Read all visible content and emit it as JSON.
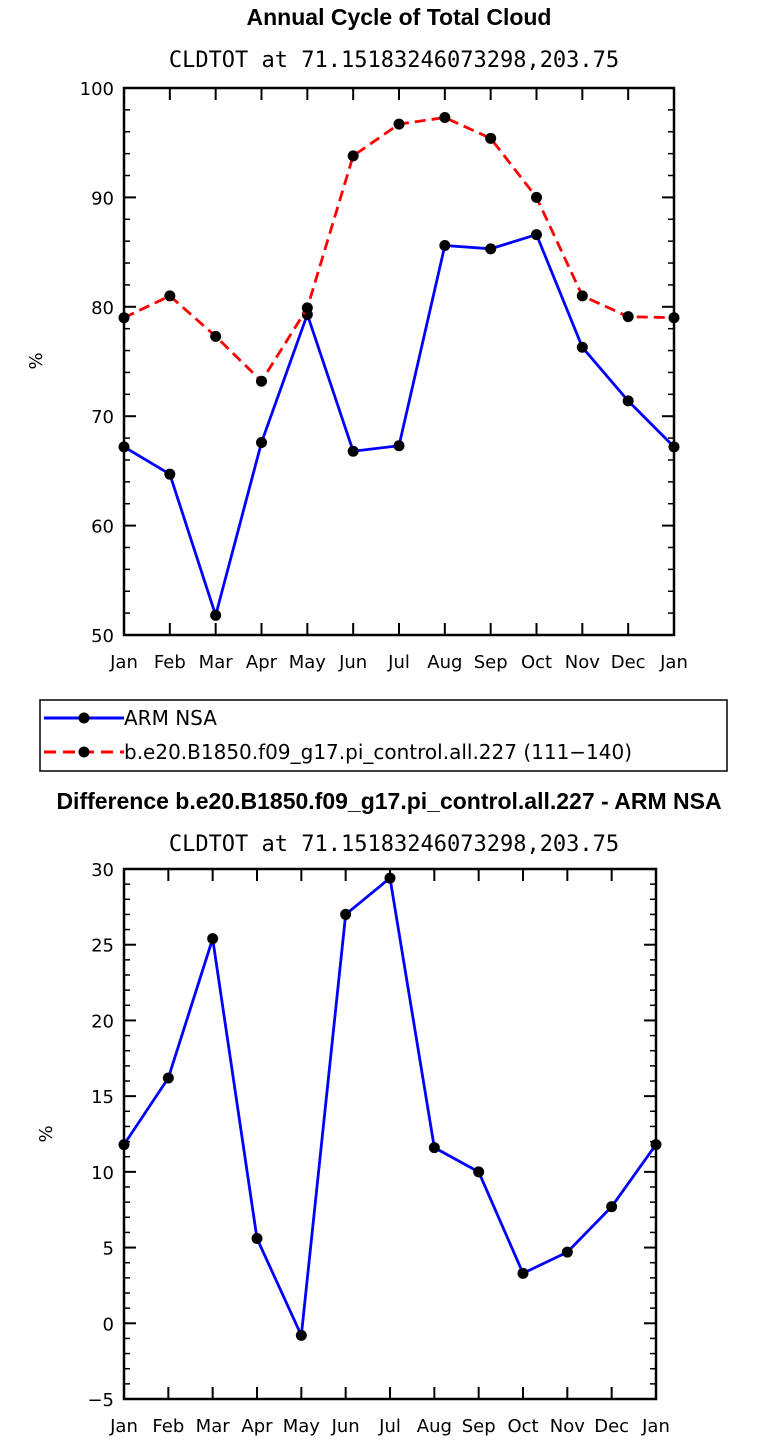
{
  "chart_data": [
    {
      "type": "line",
      "title": "Annual Cycle of Total Cloud",
      "subtitle": "CLDTOT at 71.15183246073298,203.75",
      "xlabel": "",
      "ylabel": "%",
      "categories": [
        "Jan",
        "Feb",
        "Mar",
        "Apr",
        "May",
        "Jun",
        "Jul",
        "Aug",
        "Sep",
        "Oct",
        "Nov",
        "Dec",
        "Jan"
      ],
      "ylim": [
        50,
        100
      ],
      "yticks": [
        50,
        60,
        70,
        80,
        90,
        100
      ],
      "yminor": 2,
      "series": [
        {
          "name": "ARM NSA",
          "color": "#0000ff",
          "dash": "solid",
          "values": [
            67.2,
            64.7,
            51.8,
            67.6,
            79.3,
            66.8,
            67.3,
            85.6,
            85.3,
            86.6,
            76.3,
            71.4,
            67.2
          ]
        },
        {
          "name": "b.e20.B1850.f09_g17.pi_control.all.227 (111−140)",
          "color": "#ff0000",
          "dash": "dashed",
          "values": [
            79.0,
            81.0,
            77.3,
            73.2,
            79.9,
            93.8,
            96.7,
            97.3,
            95.4,
            90.0,
            81.0,
            79.1,
            79.0
          ]
        }
      ],
      "legend": [
        "ARM NSA",
        "b.e20.B1850.f09_g17.pi_control.all.227 (111−140)"
      ]
    },
    {
      "type": "line",
      "title": "Difference b.e20.B1850.f09_g17.pi_control.all.227 - ARM NSA",
      "subtitle": "CLDTOT at 71.15183246073298,203.75",
      "xlabel": "",
      "ylabel": "%",
      "categories": [
        "Jan",
        "Feb",
        "Mar",
        "Apr",
        "May",
        "Jun",
        "Jul",
        "Aug",
        "Sep",
        "Oct",
        "Nov",
        "Dec",
        "Jan"
      ],
      "ylim": [
        -5,
        30
      ],
      "yticks": [
        -5,
        0,
        5,
        10,
        15,
        20,
        25,
        30
      ],
      "yminor": 1,
      "series": [
        {
          "name": "Difference",
          "color": "#0000ff",
          "dash": "solid",
          "values": [
            11.8,
            16.2,
            25.4,
            5.6,
            -0.8,
            27.0,
            29.4,
            11.6,
            10.0,
            3.3,
            4.7,
            7.7,
            11.8
          ]
        }
      ]
    }
  ]
}
